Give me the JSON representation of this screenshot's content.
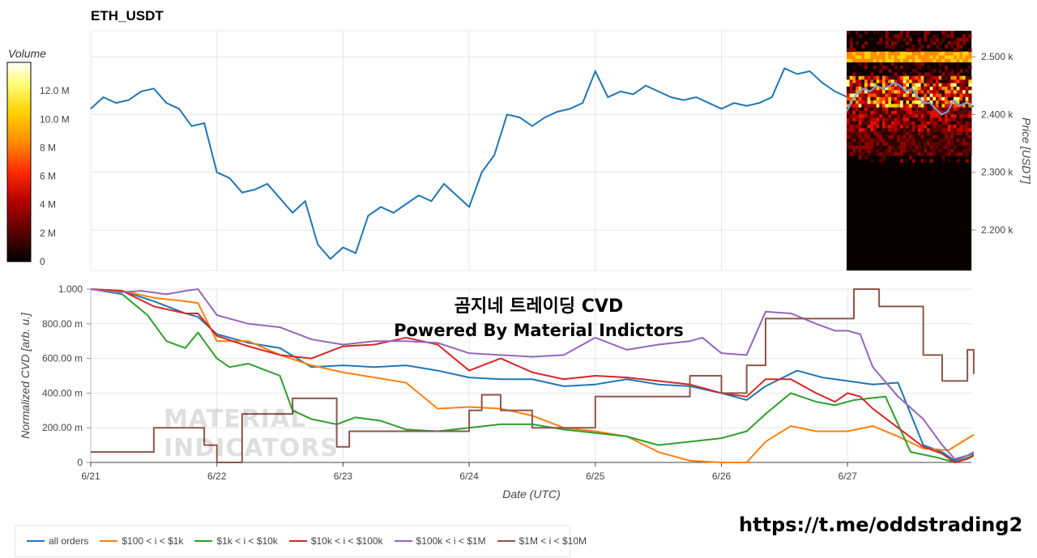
{
  "page": {
    "title": "ETH_USDT",
    "overlay_line1": "곰지네 트레이딩 CVD",
    "overlay_line2": "Powered By Material Indictors",
    "watermark_line1": "MATERIAL",
    "watermark_line2": "INDICATORS",
    "link": "https://t.me/oddstrading2"
  },
  "colorbar": {
    "title": "Volume",
    "ticks": [
      "0",
      "2 M",
      "4 M",
      "6 M",
      "8 M",
      "10.0 M",
      "12.0 M"
    ],
    "tick_values": [
      0,
      2,
      4,
      6,
      8,
      10,
      12
    ],
    "max": 14,
    "colors": [
      "#000000",
      "#5a0000",
      "#b40000",
      "#ff2a00",
      "#ff8c00",
      "#ffd200",
      "#ffff80",
      "#ffffff"
    ]
  },
  "chart_data": [
    {
      "type": "line",
      "title": "ETH_USDT",
      "ylabel": "Price [USDT]",
      "yticks": [
        "2.200 k",
        "2.300 k",
        "2.400 k",
        "2.500 k"
      ],
      "ytick_values": [
        2200,
        2300,
        2400,
        2500
      ],
      "ylim": [
        2130,
        2545
      ],
      "xlim": [
        0,
        7
      ],
      "grid": true,
      "series": [
        {
          "color": "#1f77b4",
          "x": [
            0,
            0.1,
            0.2,
            0.3,
            0.4,
            0.5,
            0.6,
            0.7,
            0.8,
            0.9,
            1.0,
            1.1,
            1.2,
            1.3,
            1.4,
            1.5,
            1.6,
            1.7,
            1.8,
            1.9,
            2.0,
            2.1,
            2.2,
            2.3,
            2.4,
            2.5,
            2.6,
            2.7,
            2.8,
            2.9,
            3.0,
            3.1,
            3.2,
            3.3,
            3.4,
            3.5,
            3.6,
            3.7,
            3.8,
            3.9,
            4.0,
            4.1,
            4.2,
            4.3,
            4.4,
            4.5,
            4.6,
            4.7,
            4.8,
            4.9,
            5.0,
            5.1,
            5.2,
            5.3,
            5.4,
            5.5,
            5.6,
            5.7,
            5.8,
            5.9,
            6.0,
            6.1,
            6.2,
            6.3,
            6.4,
            6.5,
            6.6,
            6.7,
            6.8,
            6.9,
            7.0
          ],
          "y": [
            2410,
            2430,
            2420,
            2425,
            2440,
            2445,
            2420,
            2410,
            2380,
            2385,
            2300,
            2290,
            2265,
            2270,
            2280,
            2255,
            2230,
            2250,
            2175,
            2150,
            2170,
            2160,
            2225,
            2240,
            2230,
            2245,
            2260,
            2250,
            2280,
            2260,
            2240,
            2300,
            2330,
            2400,
            2395,
            2380,
            2395,
            2405,
            2410,
            2420,
            2475,
            2430,
            2440,
            2435,
            2450,
            2440,
            2430,
            2425,
            2430,
            2420,
            2410,
            2420,
            2415,
            2420,
            2430,
            2480,
            2470,
            2475,
            2455,
            2440,
            2430,
            2420,
            2430,
            2440,
            2410,
            2410,
            2395,
            2420,
            2400,
            2410,
            2415
          ]
        }
      ]
    },
    {
      "type": "line",
      "title": "",
      "xlabel": "Date (UTC)",
      "ylabel": "Normalized CVD [arb. u.]",
      "categories": [
        "6/21",
        "6/22",
        "6/23",
        "6/24",
        "6/25",
        "6/26",
        "6/27"
      ],
      "xlim": [
        0,
        7
      ],
      "yticks": [
        "0",
        "200.00 m",
        "400.00 m",
        "600.00 m",
        "800.00 m",
        "1.000"
      ],
      "ytick_values": [
        0,
        0.2,
        0.4,
        0.6,
        0.8,
        1.0
      ],
      "ylim": [
        0,
        1.0
      ],
      "grid": true,
      "legend_position": "bottom",
      "series": [
        {
          "name": "all orders",
          "color": "#1f77b4",
          "x": [
            0,
            0.25,
            0.5,
            0.75,
            0.85,
            1.0,
            1.25,
            1.5,
            1.75,
            2.0,
            2.25,
            2.5,
            2.75,
            3.0,
            3.25,
            3.5,
            3.75,
            4.0,
            4.25,
            4.5,
            4.75,
            5.0,
            5.2,
            5.35,
            5.6,
            5.8,
            6.0,
            6.2,
            6.4,
            6.6,
            6.75,
            6.85,
            6.95,
            7.0
          ],
          "y": [
            1.0,
            0.99,
            0.93,
            0.86,
            0.84,
            0.74,
            0.69,
            0.66,
            0.55,
            0.56,
            0.55,
            0.56,
            0.53,
            0.49,
            0.48,
            0.48,
            0.44,
            0.45,
            0.48,
            0.45,
            0.44,
            0.4,
            0.36,
            0.44,
            0.53,
            0.49,
            0.47,
            0.45,
            0.46,
            0.1,
            0.06,
            0.01,
            0.04,
            0.05
          ]
        },
        {
          "name": "$100 < i < $1k",
          "color": "#ff7f0e",
          "x": [
            0,
            0.25,
            0.5,
            0.75,
            0.85,
            1.0,
            1.25,
            1.5,
            1.75,
            2.0,
            2.25,
            2.5,
            2.75,
            3.0,
            3.25,
            3.5,
            3.75,
            4.0,
            4.25,
            4.5,
            4.75,
            5.0,
            5.1,
            5.2,
            5.35,
            5.55,
            5.75,
            6.0,
            6.2,
            6.4,
            6.6,
            6.8,
            7.0
          ],
          "y": [
            1.0,
            0.99,
            0.95,
            0.93,
            0.92,
            0.7,
            0.7,
            0.62,
            0.56,
            0.52,
            0.49,
            0.46,
            0.31,
            0.32,
            0.31,
            0.27,
            0.2,
            0.18,
            0.15,
            0.06,
            0.01,
            0.0,
            0.0,
            0.0,
            0.12,
            0.21,
            0.18,
            0.18,
            0.21,
            0.15,
            0.08,
            0.07,
            0.16
          ]
        },
        {
          "name": "$1k < i < $10k",
          "color": "#2ca02c",
          "x": [
            0,
            0.25,
            0.45,
            0.6,
            0.75,
            0.85,
            1.0,
            1.1,
            1.25,
            1.5,
            1.6,
            1.75,
            1.95,
            2.1,
            2.3,
            2.5,
            2.75,
            3.0,
            3.25,
            3.5,
            3.75,
            4.0,
            4.25,
            4.5,
            4.75,
            5.0,
            5.2,
            5.35,
            5.55,
            5.75,
            5.9,
            6.05,
            6.3,
            6.5,
            6.7,
            6.85,
            7.0
          ],
          "y": [
            1.0,
            0.97,
            0.85,
            0.7,
            0.66,
            0.75,
            0.6,
            0.55,
            0.57,
            0.5,
            0.3,
            0.25,
            0.22,
            0.26,
            0.24,
            0.19,
            0.18,
            0.2,
            0.22,
            0.22,
            0.19,
            0.17,
            0.15,
            0.1,
            0.12,
            0.14,
            0.18,
            0.28,
            0.4,
            0.35,
            0.33,
            0.36,
            0.38,
            0.06,
            0.03,
            0.0,
            0.04
          ]
        },
        {
          "name": "$10k < i < $100k",
          "color": "#d62728",
          "x": [
            0,
            0.25,
            0.5,
            0.75,
            0.85,
            1.0,
            1.25,
            1.5,
            1.75,
            2.0,
            2.25,
            2.5,
            2.75,
            3.0,
            3.25,
            3.5,
            3.75,
            4.0,
            4.25,
            4.5,
            4.75,
            5.0,
            5.2,
            5.35,
            5.55,
            5.75,
            5.9,
            6.0,
            6.1,
            6.2,
            6.4,
            6.6,
            6.75,
            6.85,
            6.95,
            7.0
          ],
          "y": [
            1.0,
            0.99,
            0.9,
            0.86,
            0.86,
            0.73,
            0.67,
            0.62,
            0.6,
            0.67,
            0.68,
            0.72,
            0.68,
            0.53,
            0.6,
            0.52,
            0.48,
            0.5,
            0.49,
            0.47,
            0.45,
            0.4,
            0.38,
            0.48,
            0.48,
            0.4,
            0.35,
            0.4,
            0.38,
            0.31,
            0.2,
            0.09,
            0.05,
            0.0,
            0.02,
            0.04
          ]
        },
        {
          "name": "$100k < i < $1M",
          "color": "#9467bd",
          "x": [
            0,
            0.2,
            0.4,
            0.6,
            0.75,
            0.85,
            1.0,
            1.25,
            1.5,
            1.75,
            2.0,
            2.25,
            2.5,
            2.75,
            3.0,
            3.25,
            3.5,
            3.75,
            4.0,
            4.25,
            4.5,
            4.75,
            4.85,
            5.0,
            5.2,
            5.35,
            5.55,
            5.75,
            5.9,
            6.0,
            6.1,
            6.2,
            6.4,
            6.6,
            6.75,
            6.85,
            6.95,
            7.0
          ],
          "y": [
            1.0,
            0.98,
            0.99,
            0.97,
            0.99,
            1.0,
            0.85,
            0.8,
            0.78,
            0.71,
            0.68,
            0.7,
            0.7,
            0.69,
            0.63,
            0.62,
            0.61,
            0.62,
            0.72,
            0.65,
            0.68,
            0.7,
            0.72,
            0.63,
            0.62,
            0.87,
            0.86,
            0.8,
            0.76,
            0.76,
            0.74,
            0.55,
            0.38,
            0.25,
            0.1,
            0.02,
            0.04,
            0.06
          ]
        },
        {
          "name": "$1M < i < $10M",
          "color": "#8c564b",
          "step": true,
          "x": [
            0,
            0.3,
            0.5,
            0.7,
            0.85,
            0.9,
            0.95,
            1.0,
            1.1,
            1.2,
            1.3,
            1.5,
            1.6,
            1.75,
            1.85,
            1.95,
            2.0,
            2.05,
            2.1,
            2.5,
            2.75,
            2.9,
            3.0,
            3.1,
            3.25,
            3.5,
            3.75,
            4.0,
            4.25,
            4.5,
            4.75,
            5.0,
            5.2,
            5.35,
            5.55,
            5.75,
            5.9,
            6.05,
            6.25,
            6.45,
            6.6,
            6.75,
            6.85,
            6.95,
            7.0
          ],
          "y": [
            0.06,
            0.06,
            0.2,
            0.2,
            0.2,
            0.1,
            0.1,
            0.0,
            0.0,
            0.28,
            0.28,
            0.28,
            0.37,
            0.37,
            0.37,
            0.09,
            0.09,
            0.18,
            0.18,
            0.18,
            0.18,
            0.18,
            0.3,
            0.39,
            0.3,
            0.2,
            0.2,
            0.38,
            0.38,
            0.38,
            0.5,
            0.4,
            0.56,
            0.83,
            0.83,
            0.83,
            0.83,
            1.0,
            0.9,
            0.9,
            0.62,
            0.47,
            0.47,
            0.65,
            0.51
          ]
        }
      ]
    }
  ]
}
